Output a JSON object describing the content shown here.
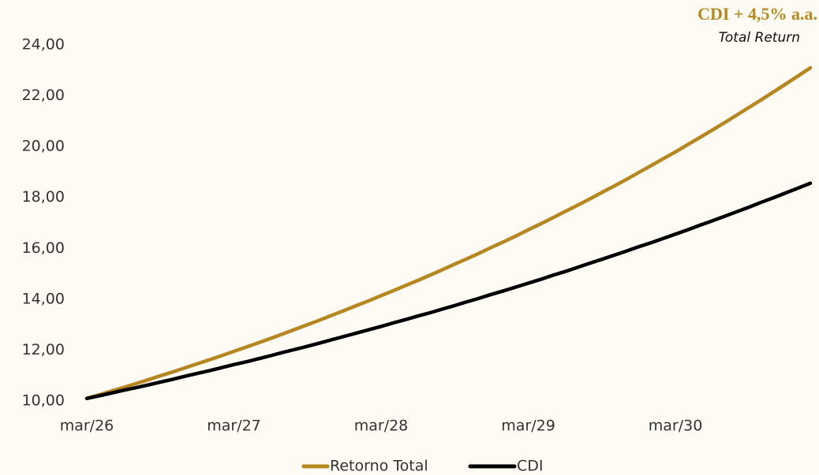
{
  "chart_data": {
    "type": "line",
    "annotation": {
      "title": "CDI + 4,5% a.a.",
      "subtitle": "Total Return"
    },
    "categories": [
      "mar/26",
      null,
      null,
      null,
      null,
      null,
      null,
      null,
      null,
      null,
      null,
      null,
      "mar/27",
      null,
      null,
      null,
      null,
      null,
      null,
      null,
      null,
      null,
      null,
      null,
      "mar/28",
      null,
      null,
      null,
      null,
      null,
      null,
      null,
      null,
      null,
      null,
      null,
      "mar/29",
      null,
      null,
      null,
      null,
      null,
      null,
      null,
      null,
      null,
      null,
      null,
      "mar/30",
      null,
      null,
      null,
      null,
      null,
      null,
      null,
      null,
      null,
      null,
      null
    ],
    "series": [
      {
        "name": "Retorno Total",
        "color": "#b8861f",
        "values": [
          10.1,
          10.24,
          10.39,
          10.53,
          10.68,
          10.83,
          10.99,
          11.14,
          11.3,
          11.46,
          11.62,
          11.78,
          11.95,
          12.12,
          12.29,
          12.46,
          12.64,
          12.82,
          13.0,
          13.18,
          13.37,
          13.56,
          13.75,
          13.94,
          14.14,
          14.34,
          14.54,
          14.74,
          14.95,
          15.16,
          15.38,
          15.59,
          15.81,
          16.04,
          16.26,
          16.49,
          16.73,
          16.96,
          17.2,
          17.45,
          17.69,
          17.94,
          18.2,
          18.45,
          18.71,
          18.98,
          19.25,
          19.52,
          19.79,
          20.08,
          20.36,
          20.65,
          20.94,
          21.24,
          21.54,
          21.84,
          22.15,
          22.46,
          22.78,
          23.1
        ]
      },
      {
        "name": "CDI",
        "color": "#000000",
        "values": [
          10.1,
          10.2,
          10.31,
          10.42,
          10.52,
          10.63,
          10.74,
          10.85,
          10.97,
          11.08,
          11.19,
          11.31,
          11.43,
          11.54,
          11.66,
          11.78,
          11.91,
          12.03,
          12.15,
          12.28,
          12.41,
          12.54,
          12.67,
          12.8,
          12.93,
          13.07,
          13.2,
          13.34,
          13.47,
          13.61,
          13.75,
          13.9,
          14.04,
          14.19,
          14.33,
          14.48,
          14.63,
          14.78,
          14.94,
          15.09,
          15.25,
          15.41,
          15.57,
          15.73,
          15.89,
          16.06,
          16.22,
          16.39,
          16.56,
          16.73,
          16.91,
          17.08,
          17.26,
          17.44,
          17.62,
          17.81,
          17.99,
          18.18,
          18.37,
          18.56
        ]
      }
    ],
    "ylim": [
      10,
      24
    ],
    "yticks": [
      {
        "value": 10,
        "label": "10,00"
      },
      {
        "value": 12,
        "label": "12,00"
      },
      {
        "value": 14,
        "label": "14,00"
      },
      {
        "value": 16,
        "label": "16,00"
      },
      {
        "value": 18,
        "label": "18,00"
      },
      {
        "value": 20,
        "label": "20,00"
      },
      {
        "value": 22,
        "label": "22,00"
      },
      {
        "value": 24,
        "label": "24,00"
      }
    ],
    "grid": false,
    "legend": "bottom"
  }
}
